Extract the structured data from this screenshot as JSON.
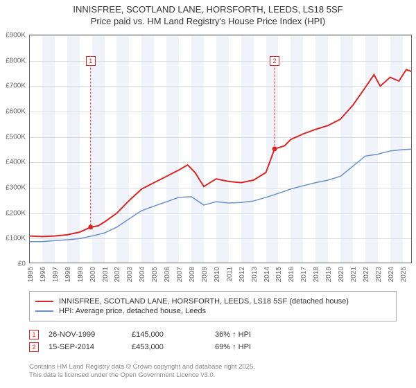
{
  "title_line1": "INNISFREE, SCOTLAND LANE, HORSFORTH, LEEDS, LS18 5SF",
  "title_line2": "Price paid vs. HM Land Registry's House Price Index (HPI)",
  "chart": {
    "type": "line",
    "background_color": "#ffffff",
    "band_color": "#f0f3f9",
    "grid_color": "#dadde3",
    "border_color": "#666666",
    "xlim": [
      1995,
      2025.8
    ],
    "ylim": [
      0,
      900000
    ],
    "ytick_step": 100000,
    "yticks": [
      "£0",
      "£100K",
      "£200K",
      "£300K",
      "£400K",
      "£500K",
      "£600K",
      "£700K",
      "£800K",
      "£900K"
    ],
    "xticks": [
      1995,
      1996,
      1997,
      1998,
      1999,
      2000,
      2001,
      2002,
      2003,
      2004,
      2005,
      2006,
      2007,
      2008,
      2009,
      2010,
      2011,
      2012,
      2013,
      2014,
      2015,
      2016,
      2017,
      2018,
      2019,
      2020,
      2021,
      2022,
      2023,
      2024,
      2025
    ],
    "series": [
      {
        "name": "price_paid",
        "label": "INNISFREE, SCOTLAND LANE, HORSFORTH, LEEDS, LS18 5SF (detached house)",
        "color": "#d62728",
        "line_width": 2,
        "points": [
          [
            1995.0,
            110000
          ],
          [
            1996.0,
            108000
          ],
          [
            1997.0,
            110000
          ],
          [
            1998.0,
            115000
          ],
          [
            1999.0,
            125000
          ],
          [
            1999.9,
            145000
          ],
          [
            2000.5,
            150000
          ],
          [
            2001.0,
            165000
          ],
          [
            2002.0,
            200000
          ],
          [
            2003.0,
            250000
          ],
          [
            2004.0,
            295000
          ],
          [
            2005.0,
            320000
          ],
          [
            2006.0,
            345000
          ],
          [
            2007.0,
            370000
          ],
          [
            2007.7,
            390000
          ],
          [
            2008.3,
            360000
          ],
          [
            2009.0,
            305000
          ],
          [
            2010.0,
            335000
          ],
          [
            2011.0,
            325000
          ],
          [
            2012.0,
            320000
          ],
          [
            2013.0,
            330000
          ],
          [
            2014.0,
            360000
          ],
          [
            2014.6,
            440000
          ],
          [
            2014.7,
            453000
          ],
          [
            2015.5,
            465000
          ],
          [
            2016.0,
            490000
          ],
          [
            2017.0,
            512000
          ],
          [
            2018.0,
            530000
          ],
          [
            2019.0,
            545000
          ],
          [
            2020.0,
            570000
          ],
          [
            2021.0,
            625000
          ],
          [
            2022.0,
            695000
          ],
          [
            2022.7,
            745000
          ],
          [
            2023.2,
            700000
          ],
          [
            2024.0,
            735000
          ],
          [
            2024.7,
            720000
          ],
          [
            2025.3,
            765000
          ],
          [
            2025.7,
            758000
          ]
        ]
      },
      {
        "name": "hpi",
        "label": "HPI: Average price, detached house, Leeds",
        "color": "#6b8fc9",
        "line_width": 1.5,
        "points": [
          [
            1995.0,
            88000
          ],
          [
            1996.0,
            88000
          ],
          [
            1997.0,
            92000
          ],
          [
            1998.0,
            95000
          ],
          [
            1999.0,
            100000
          ],
          [
            2000.0,
            110000
          ],
          [
            2001.0,
            122000
          ],
          [
            2002.0,
            145000
          ],
          [
            2003.0,
            178000
          ],
          [
            2004.0,
            210000
          ],
          [
            2005.0,
            228000
          ],
          [
            2006.0,
            245000
          ],
          [
            2007.0,
            262000
          ],
          [
            2008.0,
            265000
          ],
          [
            2009.0,
            232000
          ],
          [
            2010.0,
            245000
          ],
          [
            2011.0,
            240000
          ],
          [
            2012.0,
            242000
          ],
          [
            2013.0,
            248000
          ],
          [
            2014.0,
            262000
          ],
          [
            2015.0,
            278000
          ],
          [
            2016.0,
            295000
          ],
          [
            2017.0,
            308000
          ],
          [
            2018.0,
            320000
          ],
          [
            2019.0,
            330000
          ],
          [
            2020.0,
            345000
          ],
          [
            2021.0,
            385000
          ],
          [
            2022.0,
            425000
          ],
          [
            2023.0,
            432000
          ],
          [
            2024.0,
            445000
          ],
          [
            2025.0,
            450000
          ],
          [
            2025.7,
            452000
          ]
        ]
      }
    ],
    "markers": [
      {
        "num": "1",
        "x": 1999.9,
        "y": 145000,
        "box_y": 800000
      },
      {
        "num": "2",
        "x": 2014.7,
        "y": 453000,
        "box_y": 800000
      }
    ]
  },
  "legend": {
    "items": [
      {
        "color": "#d62728",
        "label_key": "chart.series.0.label"
      },
      {
        "color": "#6b8fc9",
        "label_key": "chart.series.1.label"
      }
    ]
  },
  "trades": [
    {
      "num": "1",
      "date": "26-NOV-1999",
      "price": "£145,000",
      "delta": "36% ↑ HPI"
    },
    {
      "num": "2",
      "date": "15-SEP-2014",
      "price": "£453,000",
      "delta": "69% ↑ HPI"
    }
  ],
  "attribution_line1": "Contains HM Land Registry data © Crown copyright and database right 2025.",
  "attribution_line2": "This data is licensed under the Open Government Licence v3.0."
}
